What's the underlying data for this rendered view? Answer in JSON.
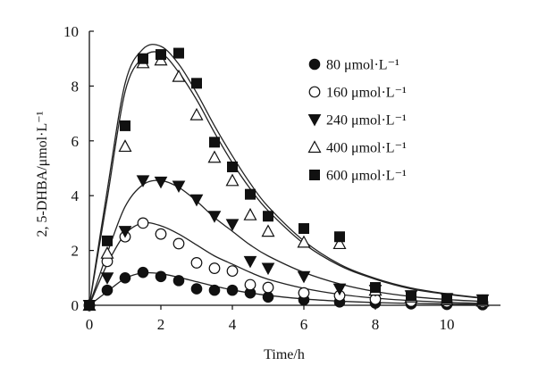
{
  "chart_data": {
    "type": "scatter",
    "xlabel": "Time/h",
    "ylabel": "2, 5-DHBA/μmol·L⁻¹",
    "xlim": [
      0,
      11
    ],
    "ylim": [
      0,
      10
    ],
    "xticks": [
      0,
      2,
      4,
      6,
      8,
      10
    ],
    "yticks": [
      0,
      2,
      4,
      6,
      8,
      10
    ],
    "grid": false,
    "legend_position": "top-right",
    "series": [
      {
        "name": "80 μmol·L⁻¹",
        "marker": "filled-circle",
        "x": [
          0,
          0.5,
          1,
          1.5,
          2,
          2.5,
          3,
          3.5,
          4,
          4.5,
          5,
          6,
          7,
          8,
          9,
          10,
          11
        ],
        "y": [
          0,
          0.55,
          1.0,
          1.2,
          1.05,
          0.9,
          0.6,
          0.55,
          0.55,
          0.45,
          0.3,
          0.2,
          0.12,
          0.08,
          0.05,
          0.03,
          0.02
        ],
        "fit": [
          0,
          0.5,
          0.98,
          1.18,
          1.15,
          1.02,
          0.86,
          0.7,
          0.56,
          0.45,
          0.36,
          0.23,
          0.15,
          0.1,
          0.07,
          0.05,
          0.03
        ]
      },
      {
        "name": "160 μmol·L⁻¹",
        "marker": "open-circle",
        "x": [
          0,
          0.5,
          1,
          1.5,
          2,
          2.5,
          3,
          3.5,
          4,
          4.5,
          5,
          6,
          7,
          8,
          9,
          10,
          11
        ],
        "y": [
          0,
          1.6,
          2.5,
          3.0,
          2.6,
          2.25,
          1.55,
          1.35,
          1.25,
          0.75,
          0.65,
          0.45,
          0.35,
          0.22,
          0.15,
          0.12,
          0.1
        ],
        "fit": [
          0,
          1.5,
          2.6,
          3.0,
          2.9,
          2.6,
          2.2,
          1.8,
          1.5,
          1.2,
          0.95,
          0.62,
          0.4,
          0.26,
          0.17,
          0.11,
          0.07
        ]
      },
      {
        "name": "240 μmol·L⁻¹",
        "marker": "filled-triangle-down",
        "x": [
          0,
          0.5,
          1,
          1.5,
          2,
          2.5,
          3,
          3.5,
          4,
          4.5,
          5,
          6,
          7,
          8,
          9,
          10,
          11
        ],
        "y": [
          0,
          1.0,
          2.7,
          4.55,
          4.5,
          4.35,
          3.85,
          3.25,
          2.95,
          1.6,
          1.35,
          1.05,
          0.6,
          0.55,
          0.35,
          0.25,
          0.2
        ],
        "fit": [
          0,
          1.9,
          3.6,
          4.4,
          4.55,
          4.3,
          3.8,
          3.2,
          2.7,
          2.2,
          1.8,
          1.2,
          0.78,
          0.5,
          0.32,
          0.21,
          0.14
        ]
      },
      {
        "name": "400 μmol·L⁻¹",
        "marker": "open-triangle-up",
        "x": [
          0,
          0.5,
          1,
          1.5,
          2,
          2.5,
          3,
          3.5,
          4,
          4.5,
          5,
          6,
          7,
          8,
          9,
          10,
          11
        ],
        "y": [
          0,
          1.9,
          5.8,
          8.85,
          8.95,
          8.35,
          6.95,
          5.4,
          4.55,
          3.3,
          2.7,
          2.3,
          2.25,
          0.55,
          0.3,
          0.2,
          0.15
        ],
        "fit": [
          0,
          3.9,
          7.8,
          9.05,
          9.2,
          8.5,
          7.5,
          6.3,
          5.2,
          4.25,
          3.45,
          2.25,
          1.45,
          0.95,
          0.6,
          0.4,
          0.25
        ]
      },
      {
        "name": "600 μmol·L⁻¹",
        "marker": "filled-square",
        "x": [
          0,
          0.5,
          1,
          1.5,
          2,
          2.5,
          3,
          3.5,
          4,
          4.5,
          5,
          6,
          7,
          8,
          9,
          10,
          11
        ],
        "y": [
          0,
          2.35,
          6.55,
          9.0,
          9.15,
          9.2,
          8.1,
          5.95,
          5.05,
          4.05,
          3.25,
          2.8,
          2.5,
          0.65,
          0.35,
          0.25,
          0.2
        ],
        "fit": [
          0,
          4.2,
          8.1,
          9.35,
          9.45,
          8.8,
          7.75,
          6.55,
          5.45,
          4.45,
          3.6,
          2.35,
          1.5,
          0.98,
          0.63,
          0.42,
          0.27
        ]
      }
    ]
  }
}
